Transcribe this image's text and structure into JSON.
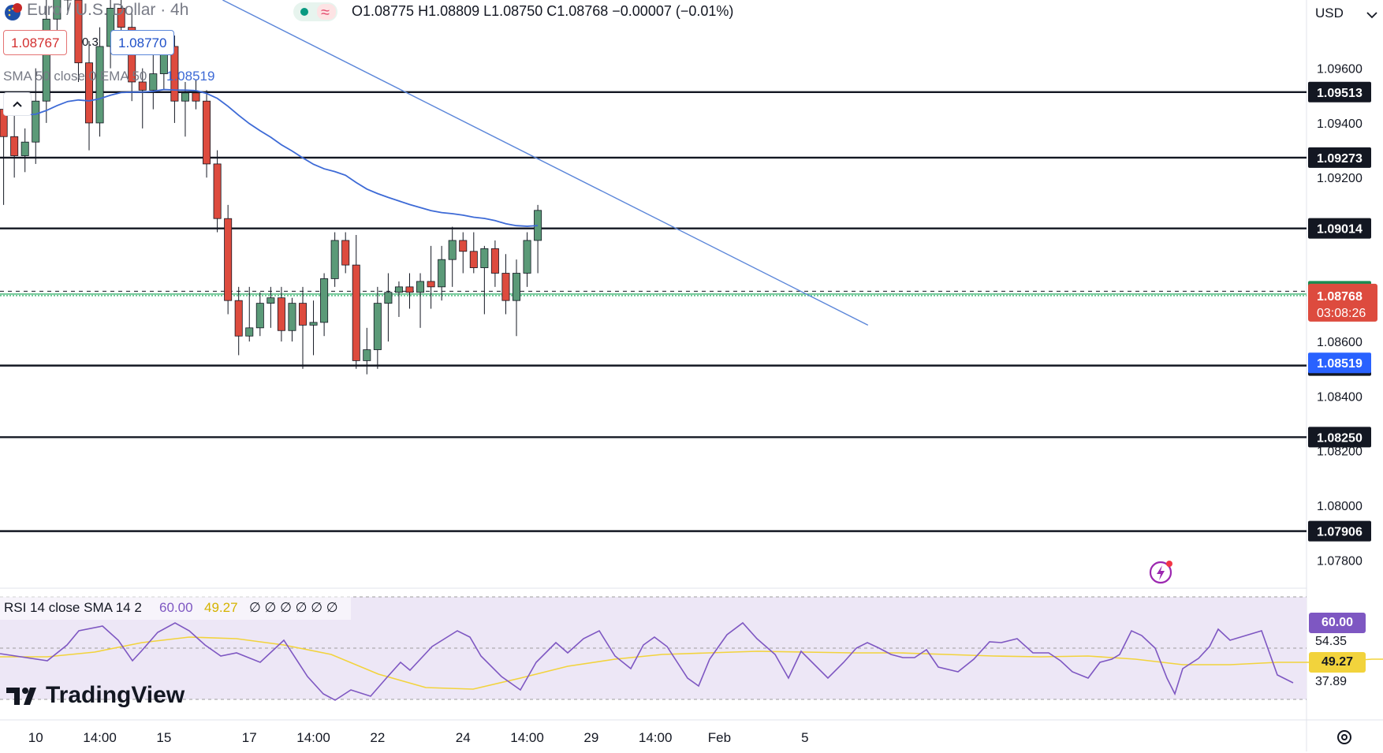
{
  "header": {
    "symbol_name": "Euro / U.S. Dollar · 4h",
    "ohlc": "O1.08775 H1.08809 L1.08750 C1.08768 −0.00007 (−0.01%)",
    "bid": "1.08767",
    "spread": "0.3",
    "ask": "1.08770",
    "currency": "USD",
    "flag_icon": "eu-us-flag-icon",
    "indicator_badge_icons": [
      "green-dot-icon",
      "approx-icon"
    ]
  },
  "overlay": {
    "ma_label": "SMA 50 close 0 EMA 50",
    "ma_value": "1.08519",
    "collapse_icon": "chevron-up-icon",
    "lightning_icon": "lightning-alert-icon"
  },
  "rsi": {
    "label": "RSI 14 close SMA 14 2",
    "rsi_value": "60.00",
    "sma_value": "49.27",
    "empty_values": [
      "∅",
      "∅",
      "∅",
      "∅",
      "∅",
      "∅"
    ]
  },
  "branding": {
    "logo_text": "TradingView"
  },
  "settings_icon": "gear-icon",
  "colors": {
    "up": "#5b9a78",
    "down": "#dd4b3e",
    "ma": "#3d6ad6",
    "trend": "#5b86d9",
    "rsi_line": "#7e57c2",
    "rsi_sma": "#f2d33c",
    "last_price": "#3cb371"
  },
  "chart_data": {
    "type": "candlestick",
    "title": "Euro / U.S. Dollar · 4h",
    "y_axis": {
      "min": 1.077,
      "max": 1.0985,
      "ticks": [
        "1.09600",
        "1.09400",
        "1.09200",
        "1.08600",
        "1.08400",
        "1.08200",
        "1.08000",
        "1.07800"
      ]
    },
    "x_axis": {
      "ticks": [
        {
          "label": "10",
          "bar": 3
        },
        {
          "label": "14:00",
          "bar": 9
        },
        {
          "label": "15",
          "bar": 15
        },
        {
          "label": "17",
          "bar": 23
        },
        {
          "label": "14:00",
          "bar": 29
        },
        {
          "label": "22",
          "bar": 35
        },
        {
          "label": "24",
          "bar": 43
        },
        {
          "label": "14:00",
          "bar": 49
        },
        {
          "label": "29",
          "bar": 55
        },
        {
          "label": "14:00",
          "bar": 61
        },
        {
          "label": "Feb",
          "bar": 67
        },
        {
          "label": "5",
          "bar": 75
        }
      ]
    },
    "horizontal_levels": [
      {
        "price": 1.09513,
        "label": "1.09513"
      },
      {
        "price": 1.09273,
        "label": "1.09273"
      },
      {
        "price": 1.09014,
        "label": "1.09014"
      },
      {
        "price": 1.08512,
        "label": "1.08512"
      },
      {
        "price": 1.0825,
        "label": "1.08250"
      },
      {
        "price": 1.07906,
        "label": "1.07906"
      }
    ],
    "high_line": {
      "price": 1.08784,
      "label": "1.08784"
    },
    "last_price": {
      "price": 1.08768,
      "label": "1.08768",
      "countdown": "03:08:26"
    },
    "ma_last": {
      "price": 1.08519,
      "label": "1.08519"
    },
    "trendline": {
      "from": {
        "bar": 20.5,
        "price": 1.0985
      },
      "to": {
        "bar": 80.9,
        "price": 1.0866
      }
    },
    "candles": [
      [
        1.0945,
        1.095,
        1.091,
        1.0935
      ],
      [
        1.0935,
        1.0945,
        1.092,
        1.0928
      ],
      [
        1.0928,
        1.0938,
        1.0922,
        1.0933
      ],
      [
        1.0933,
        1.096,
        1.0925,
        1.0948
      ],
      [
        1.0948,
        1.0985,
        1.094,
        1.0978
      ],
      [
        1.0978,
        1.0995,
        1.0968,
        1.099
      ],
      [
        1.099,
        1.1,
        1.098,
        1.0985
      ],
      [
        1.0985,
        1.0992,
        1.0955,
        1.0962
      ],
      [
        1.0962,
        1.097,
        1.093,
        1.094
      ],
      [
        1.094,
        1.0975,
        1.0935,
        1.0968
      ],
      [
        1.0968,
        1.099,
        1.096,
        1.0982
      ],
      [
        1.0982,
        1.099,
        1.0965,
        1.0975
      ],
      [
        1.0975,
        1.098,
        1.0948,
        1.0955
      ],
      [
        1.0955,
        1.096,
        1.0938,
        1.0952
      ],
      [
        1.0952,
        1.0965,
        1.0945,
        1.0958
      ],
      [
        1.0958,
        1.0972,
        1.0952,
        1.0968
      ],
      [
        1.0968,
        1.0972,
        1.094,
        1.0948
      ],
      [
        1.0948,
        1.0955,
        1.0935,
        1.0951
      ],
      [
        1.0951,
        1.0956,
        1.0945,
        1.0948
      ],
      [
        1.0948,
        1.0952,
        1.092,
        1.0925
      ],
      [
        1.0925,
        1.093,
        1.09,
        1.0905
      ],
      [
        1.0905,
        1.091,
        1.087,
        1.0875
      ],
      [
        1.0875,
        1.088,
        1.0855,
        1.0862
      ],
      [
        1.0862,
        1.088,
        1.086,
        1.0865
      ],
      [
        1.0865,
        1.0878,
        1.0862,
        1.0874
      ],
      [
        1.0874,
        1.088,
        1.0865,
        1.0876
      ],
      [
        1.0876,
        1.088,
        1.086,
        1.0864
      ],
      [
        1.0864,
        1.0876,
        1.086,
        1.0874
      ],
      [
        1.0874,
        1.088,
        1.085,
        1.0866
      ],
      [
        1.0866,
        1.0875,
        1.0855,
        1.0867
      ],
      [
        1.0867,
        1.0885,
        1.0862,
        1.0883
      ],
      [
        1.0883,
        1.09,
        1.088,
        1.0897
      ],
      [
        1.0897,
        1.09,
        1.0885,
        1.0888
      ],
      [
        1.0888,
        1.0899,
        1.085,
        1.0853
      ],
      [
        1.0853,
        1.0865,
        1.0848,
        1.0857
      ],
      [
        1.0857,
        1.088,
        1.085,
        1.0874
      ],
      [
        1.0874,
        1.0885,
        1.086,
        1.0878
      ],
      [
        1.0878,
        1.0882,
        1.0869,
        1.088
      ],
      [
        1.088,
        1.0885,
        1.0872,
        1.0878
      ],
      [
        1.0878,
        1.0885,
        1.0865,
        1.0882
      ],
      [
        1.0882,
        1.0895,
        1.0872,
        1.088
      ],
      [
        1.088,
        1.0895,
        1.0875,
        1.089
      ],
      [
        1.089,
        1.0902,
        1.088,
        1.0897
      ],
      [
        1.0897,
        1.09,
        1.0885,
        1.0893
      ],
      [
        1.0893,
        1.09,
        1.0885,
        1.0887
      ],
      [
        1.0887,
        1.0895,
        1.087,
        1.0894
      ],
      [
        1.0894,
        1.0897,
        1.088,
        1.0885
      ],
      [
        1.0885,
        1.0892,
        1.087,
        1.0875
      ],
      [
        1.0875,
        1.089,
        1.0862,
        1.0885
      ],
      [
        1.0885,
        1.09,
        1.088,
        1.0897
      ],
      [
        1.0897,
        1.091,
        1.0885,
        1.0908
      ]
    ]
  }
}
